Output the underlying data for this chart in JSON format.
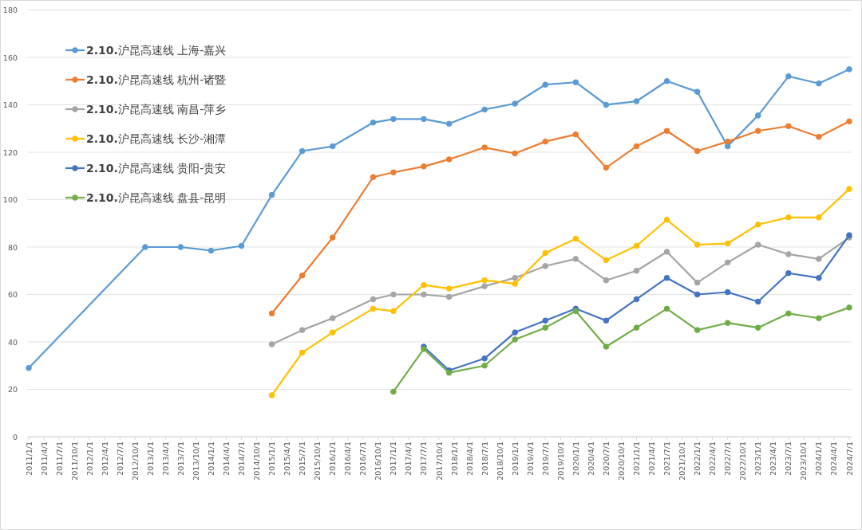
{
  "chart_data": {
    "type": "line",
    "x": [
      "2011-01",
      "2012-12",
      "2013-07",
      "2014-01",
      "2014-07",
      "2015-01",
      "2015-07",
      "2016-01",
      "2016-09",
      "2017-01",
      "2017-07",
      "2017-12",
      "2018-07",
      "2019-01",
      "2019-07",
      "2020-01",
      "2020-07",
      "2021-01",
      "2021-07",
      "2022-01",
      "2022-07",
      "2023-01",
      "2023-07",
      "2024-01",
      "2024-07"
    ],
    "series": [
      {
        "name": "**2.10.**沪昆高速线 上海-嘉兴",
        "color": "#5b9bd5",
        "values": [
          29,
          80,
          80,
          78.5,
          80.5,
          102,
          120.5,
          122.5,
          132.5,
          134,
          134,
          132,
          138,
          140.5,
          148.5,
          149.5,
          140,
          141.5,
          150,
          145.5,
          122.5,
          135.5,
          152,
          149,
          155
        ]
      },
      {
        "name": "**2.10.**沪昆高速线 杭州-诸暨",
        "color": "#ed7d31",
        "values": [
          null,
          null,
          null,
          null,
          null,
          52,
          68,
          84,
          109.5,
          111.5,
          114,
          117,
          122,
          119.5,
          124.5,
          127.5,
          113.5,
          122.5,
          129,
          120.5,
          124.5,
          129,
          131,
          126.5,
          133
        ]
      },
      {
        "name": "**2.10.**沪昆高速线 南昌-萍乡",
        "color": "#a5a5a5",
        "values": [
          null,
          null,
          null,
          null,
          null,
          39,
          45,
          50,
          58,
          60,
          60,
          59,
          63.5,
          67,
          72,
          75,
          66,
          70,
          78,
          65,
          73.5,
          81,
          77,
          75,
          84
        ]
      },
      {
        "name": "**2.10.**沪昆高速线 长沙-湘潭",
        "color": "#ffc000",
        "values": [
          null,
          null,
          null,
          null,
          null,
          17.5,
          35.5,
          44,
          54,
          53,
          64,
          62.5,
          66,
          64.5,
          77.5,
          83.5,
          74.5,
          80.5,
          91.5,
          81,
          81.5,
          89.5,
          92.5,
          92.5,
          104.5
        ]
      },
      {
        "name": "**2.10.**沪昆高速线 贵阳-贵安",
        "color": "#4472c4",
        "values": [
          null,
          null,
          null,
          null,
          null,
          null,
          null,
          null,
          null,
          null,
          38,
          28,
          33,
          44,
          49,
          54,
          49,
          58,
          67,
          60,
          61,
          57,
          69,
          67,
          85
        ]
      },
      {
        "name": "**2.10.**沪昆高速线 盘县-昆明",
        "color": "#70ad47",
        "values": [
          null,
          null,
          null,
          null,
          null,
          null,
          null,
          null,
          null,
          19,
          37,
          27,
          30,
          41,
          46,
          53,
          38,
          46,
          54,
          45,
          48,
          46,
          52,
          50,
          54.5
        ]
      }
    ],
    "xlim": [
      "2011-01-01",
      "2024-07-01"
    ],
    "xticks": [
      {
        "value": "2011-01-01",
        "label": "2011/1/1"
      },
      {
        "value": "2011-04-01",
        "label": "2011/4/1"
      },
      {
        "value": "2011-07-01",
        "label": "2011/7/1"
      },
      {
        "value": "2011-10-01",
        "label": "2011/10/1"
      },
      {
        "value": "2012-01-01",
        "label": "2012/1/1"
      },
      {
        "value": "2012-04-01",
        "label": "2012/4/1"
      },
      {
        "value": "2012-07-01",
        "label": "2012/7/1"
      },
      {
        "value": "2012-10-01",
        "label": "2012/10/1"
      },
      {
        "value": "2013-01-01",
        "label": "2013/1/1"
      },
      {
        "value": "2013-04-01",
        "label": "2013/4/1"
      },
      {
        "value": "2013-07-01",
        "label": "2013/7/1"
      },
      {
        "value": "2013-10-01",
        "label": "2013/10/1"
      },
      {
        "value": "2014-01-01",
        "label": "2014/1/1"
      },
      {
        "value": "2014-04-01",
        "label": "2014/4/1"
      },
      {
        "value": "2014-07-01",
        "label": "2014/7/1"
      },
      {
        "value": "2014-10-01",
        "label": "2014/10/1"
      },
      {
        "value": "2015-01-01",
        "label": "2015/1/1"
      },
      {
        "value": "2015-04-01",
        "label": "2015/4/1"
      },
      {
        "value": "2015-07-01",
        "label": "2015/7/1"
      },
      {
        "value": "2015-10-01",
        "label": "2015/10/1"
      },
      {
        "value": "2016-01-01",
        "label": "2016/1/1"
      },
      {
        "value": "2016-04-01",
        "label": "2016/4/1"
      },
      {
        "value": "2016-07-01",
        "label": "2016/7/1"
      },
      {
        "value": "2016-10-01",
        "label": "2016/10/1"
      },
      {
        "value": "2017-01-01",
        "label": "2017/1/1"
      },
      {
        "value": "2017-04-01",
        "label": "2017/4/1"
      },
      {
        "value": "2017-07-01",
        "label": "2017/7/1"
      },
      {
        "value": "2017-10-01",
        "label": "2017/10/1"
      },
      {
        "value": "2018-01-01",
        "label": "2018/1/1"
      },
      {
        "value": "2018-04-01",
        "label": "2018/4/1"
      },
      {
        "value": "2018-07-01",
        "label": "2018/7/1"
      },
      {
        "value": "2018-10-01",
        "label": "2018/10/1"
      },
      {
        "value": "2019-01-01",
        "label": "2019/1/1"
      },
      {
        "value": "2019-04-01",
        "label": "2019/4/1"
      },
      {
        "value": "2019-07-01",
        "label": "2019/7/1"
      },
      {
        "value": "2019-10-01",
        "label": "2019/10/1"
      },
      {
        "value": "2020-01-01",
        "label": "2020/1/1"
      },
      {
        "value": "2020-04-01",
        "label": "2020/4/1"
      },
      {
        "value": "2020-07-01",
        "label": "2020/7/1"
      },
      {
        "value": "2020-10-01",
        "label": "2020/10/1"
      },
      {
        "value": "2021-01-01",
        "label": "2021/1/1"
      },
      {
        "value": "2021-04-01",
        "label": "2021/4/1"
      },
      {
        "value": "2021-07-01",
        "label": "2021/7/1"
      },
      {
        "value": "2021-10-01",
        "label": "2021/10/1"
      },
      {
        "value": "2022-01-01",
        "label": "2022/1/1"
      },
      {
        "value": "2022-04-01",
        "label": "2022/4/1"
      },
      {
        "value": "2022-07-01",
        "label": "2022/7/1"
      },
      {
        "value": "2022-10-01",
        "label": "2022/10/1"
      },
      {
        "value": "2023-01-01",
        "label": "2023/1/1"
      },
      {
        "value": "2023-04-01",
        "label": "2023/4/1"
      },
      {
        "value": "2023-07-01",
        "label": "2023/7/1"
      },
      {
        "value": "2023-10-01",
        "label": "2023/10/1"
      },
      {
        "value": "2024-01-01",
        "label": "2024/1/1"
      },
      {
        "value": "2024-04-01",
        "label": "2024/4/1"
      },
      {
        "value": "2024-07-01",
        "label": "2024/7/1"
      }
    ],
    "ylim": [
      0,
      180
    ],
    "yticks": [
      0,
      20,
      40,
      60,
      80,
      100,
      120,
      140,
      160,
      180
    ],
    "grid": "y",
    "legend": "top left",
    "marker": "circle",
    "line_style": "solid"
  }
}
